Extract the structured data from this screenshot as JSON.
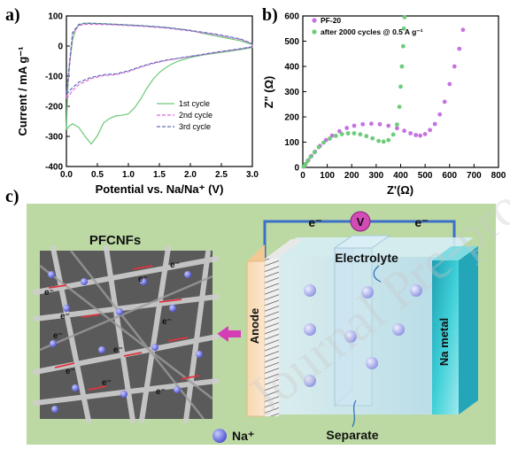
{
  "panels": {
    "a": "a)",
    "b": "b)",
    "c": "c)"
  },
  "chart_data": [
    {
      "type": "line",
      "xlabel": "Potential vs. Na/Na⁺ (V)",
      "ylabel": "Current / mA g⁻¹",
      "xlim": [
        0.0,
        3.0
      ],
      "ylim": [
        -400,
        100
      ],
      "xticks": [
        "0.0",
        "0.5",
        "1.0",
        "1.5",
        "2.0",
        "2.5",
        "3.0"
      ],
      "yticks": [
        "-400",
        "-300",
        "-200",
        "-100",
        "0",
        "100"
      ],
      "legend_position": "lower-right",
      "series": [
        {
          "name": "1st cycle",
          "color": "#6dc97a",
          "dash": "solid",
          "x": [
            0.0,
            0.05,
            0.1,
            0.2,
            0.3,
            0.4,
            0.5,
            0.6,
            0.7,
            0.8,
            0.9,
            1.0,
            1.1,
            1.2,
            1.3,
            1.4,
            1.5,
            1.6,
            1.7,
            1.8,
            2.0,
            2.2,
            2.4,
            2.6,
            2.8,
            3.0,
            3.0,
            2.8,
            2.5,
            2.2,
            2.0,
            1.6,
            1.2,
            0.8,
            0.5,
            0.3,
            0.2,
            0.15,
            0.1,
            0.05,
            0.02,
            0.0
          ],
          "y": [
            -278,
            -265,
            -258,
            -270,
            -300,
            -325,
            -298,
            -255,
            -240,
            -232,
            -230,
            -225,
            -205,
            -175,
            -140,
            -110,
            -88,
            -72,
            -60,
            -50,
            -38,
            -30,
            -24,
            -18,
            -12,
            -5,
            5,
            18,
            30,
            42,
            52,
            62,
            68,
            72,
            75,
            76,
            70,
            55,
            20,
            -60,
            -150,
            -278
          ]
        },
        {
          "name": "2nd cycle",
          "color": "#d96ad9",
          "dash": "dash",
          "x": [
            0.0,
            0.1,
            0.2,
            0.4,
            0.6,
            0.8,
            1.0,
            1.2,
            1.4,
            1.6,
            2.0,
            2.4,
            2.8,
            3.0,
            3.0,
            2.8,
            2.4,
            2.0,
            1.6,
            1.2,
            0.8,
            0.5,
            0.3,
            0.2,
            0.1,
            0.05,
            0.0
          ],
          "y": [
            -175,
            -148,
            -128,
            -108,
            -98,
            -95,
            -85,
            -70,
            -58,
            -48,
            -35,
            -22,
            -10,
            -3,
            7,
            22,
            38,
            50,
            60,
            66,
            70,
            72,
            72,
            68,
            40,
            -70,
            -175
          ]
        },
        {
          "name": "3rd cycle",
          "color": "#5b6fb5",
          "dash": "dash",
          "x": [
            0.0,
            0.1,
            0.2,
            0.4,
            0.6,
            0.8,
            1.0,
            1.2,
            1.4,
            1.6,
            2.0,
            2.4,
            2.8,
            3.0,
            3.0,
            2.8,
            2.4,
            2.0,
            1.6,
            1.2,
            0.8,
            0.5,
            0.3,
            0.2,
            0.1,
            0.05,
            0.0
          ],
          "y": [
            -160,
            -138,
            -120,
            -104,
            -95,
            -92,
            -82,
            -68,
            -56,
            -47,
            -34,
            -21,
            -9,
            -2,
            8,
            24,
            40,
            52,
            62,
            68,
            72,
            75,
            76,
            72,
            45,
            -55,
            -160
          ]
        }
      ]
    },
    {
      "type": "scatter",
      "xlabel": "Z'(Ω)",
      "ylabel": "Z\" (Ω)",
      "xlim": [
        0,
        800
      ],
      "ylim": [
        0,
        600
      ],
      "xticks": [
        "0",
        "100",
        "200",
        "300",
        "400",
        "500",
        "600",
        "700",
        "800"
      ],
      "yticks": [
        "0",
        "100",
        "200",
        "300",
        "400",
        "500",
        "600"
      ],
      "legend_position": "top-left",
      "series": [
        {
          "name": "PF-20",
          "color": "#c673e0",
          "x": [
            5,
            12,
            22,
            35,
            50,
            70,
            95,
            120,
            150,
            180,
            210,
            245,
            280,
            315,
            350,
            385,
            415,
            440,
            462,
            480,
            500,
            520,
            540,
            560,
            580,
            600,
            620,
            640,
            655
          ],
          "y": [
            4,
            14,
            28,
            45,
            62,
            85,
            108,
            126,
            143,
            156,
            165,
            171,
            173,
            171,
            165,
            155,
            145,
            135,
            128,
            126,
            132,
            148,
            172,
            210,
            260,
            330,
            400,
            470,
            545
          ]
        },
        {
          "name": "after 2000 cycles @ 0.5 A g⁻¹",
          "color": "#6dcc7a",
          "x": [
            3,
            10,
            20,
            32,
            48,
            65,
            85,
            110,
            135,
            160,
            185,
            210,
            235,
            260,
            285,
            310,
            330,
            350,
            370,
            385,
            395,
            400,
            405,
            410,
            413,
            416
          ],
          "y": [
            3,
            12,
            26,
            42,
            60,
            80,
            98,
            114,
            125,
            132,
            135,
            135,
            131,
            124,
            115,
            105,
            102,
            108,
            130,
            170,
            240,
            320,
            400,
            480,
            550,
            595
          ]
        }
      ]
    }
  ],
  "diagram": {
    "circuit_e_left": "e⁻",
    "voltmeter": "V",
    "circuit_e_right": "e⁻",
    "title": "PFCNFs",
    "sem_e_labels": [
      "e⁻",
      "e⁻",
      "e⁻",
      "e⁻",
      "e⁻",
      "e⁻",
      "e⁻",
      "e⁻",
      "e⁻",
      "e⁻"
    ],
    "electrolyte": "Electrolyte",
    "anode": "Anode",
    "na_metal": "Na metal",
    "separator": "Separate",
    "legend_ion": "Na⁺",
    "colors": {
      "background": "#bcd9a3",
      "wire": "#3b6fc8",
      "voltmeter": "#d24bb7",
      "ion": "#6b6fe0",
      "arrow": "#d43db5",
      "cell": "#bfe1f0",
      "na_metal": "#3bc6cf",
      "anode": "#f4cfa3"
    }
  }
}
